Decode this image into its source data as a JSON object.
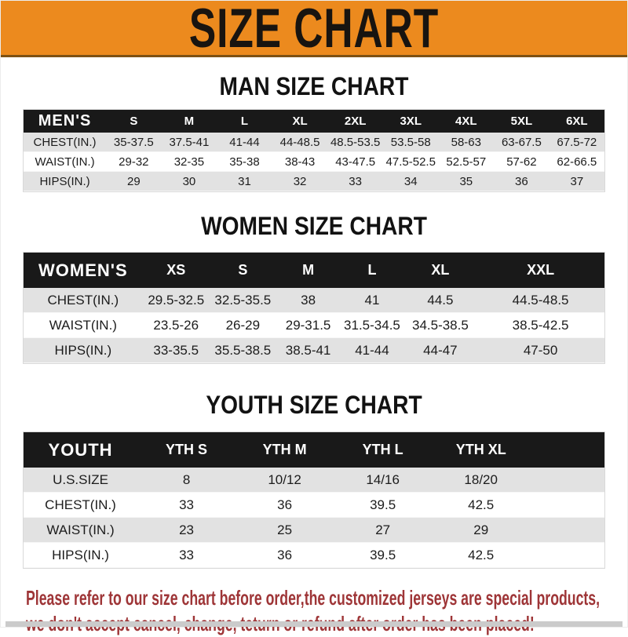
{
  "banner": {
    "title": "SIZE CHART"
  },
  "sections": [
    {
      "title": "MAN SIZE CHART",
      "header_label": "MEN'S",
      "columns": [
        "S",
        "M",
        "L",
        "XL",
        "2XL",
        "3XL",
        "4XL",
        "5XL",
        "6XL"
      ],
      "rows": [
        {
          "label": "CHEST(IN.)",
          "values": [
            "35-37.5",
            "37.5-41",
            "41-44",
            "44-48.5",
            "48.5-53.5",
            "53.5-58",
            "58-63",
            "63-67.5",
            "67.5-72"
          ]
        },
        {
          "label": "WAIST(IN.)",
          "values": [
            "29-32",
            "32-35",
            "35-38",
            "38-43",
            "43-47.5",
            "47.5-52.5",
            "52.5-57",
            "57-62",
            "62-66.5"
          ]
        },
        {
          "label": "HIPS(IN.)",
          "values": [
            "29",
            "30",
            "31",
            "32",
            "33",
            "34",
            "35",
            "36",
            "37"
          ]
        }
      ]
    },
    {
      "title": "WOMEN SIZE CHART",
      "header_label": "WOMEN'S",
      "columns": [
        "XS",
        "S",
        "M",
        "L",
        "XL",
        "XXL"
      ],
      "rows": [
        {
          "label": "CHEST(IN.)",
          "values": [
            "29.5-32.5",
            "32.5-35.5",
            "38",
            "41",
            "44.5",
            "44.5-48.5"
          ]
        },
        {
          "label": "WAIST(IN.)",
          "values": [
            "23.5-26",
            "26-29",
            "29-31.5",
            "31.5-34.5",
            "34.5-38.5",
            "38.5-42.5"
          ]
        },
        {
          "label": "HIPS(IN.)",
          "values": [
            "33-35.5",
            "35.5-38.5",
            "38.5-41",
            "41-44",
            "44-47",
            "47-50"
          ]
        }
      ]
    },
    {
      "title": "YOUTH SIZE CHART",
      "header_label": "YOUTH",
      "columns": [
        "YTH S",
        "YTH M",
        "YTH L",
        "YTH XL"
      ],
      "rows": [
        {
          "label": "U.S.SIZE",
          "values": [
            "8",
            "10/12",
            "14/16",
            "18/20"
          ]
        },
        {
          "label": "CHEST(IN.)",
          "values": [
            "33",
            "36",
            "39.5",
            "42.5"
          ]
        },
        {
          "label": "WAIST(IN.)",
          "values": [
            "23",
            "25",
            "27",
            "29"
          ]
        },
        {
          "label": "HIPS(IN.)",
          "values": [
            "33",
            "36",
            "39.5",
            "42.5"
          ]
        }
      ]
    }
  ],
  "footer": {
    "line1": "Please refer to our size chart before order,the customized jerseys are special products,",
    "line2": "we don't accept cancel, change, teturn or refund after order has been placed!"
  },
  "colors": {
    "banner_orange": "#ec8a1e",
    "banner_text": "#181410",
    "table_header_black": "#191919",
    "row_gray": "#e2e2e2",
    "row_white": "#ffffff",
    "disclaimer_red": "#9e3537"
  },
  "chart_data": [
    {
      "type": "table",
      "title": "MAN SIZE CHART",
      "columns": [
        "MEN'S",
        "S",
        "M",
        "L",
        "XL",
        "2XL",
        "3XL",
        "4XL",
        "5XL",
        "6XL"
      ],
      "rows": [
        [
          "CHEST(IN.)",
          "35-37.5",
          "37.5-41",
          "41-44",
          "44-48.5",
          "48.5-53.5",
          "53.5-58",
          "58-63",
          "63-67.5",
          "67.5-72"
        ],
        [
          "WAIST(IN.)",
          "29-32",
          "32-35",
          "35-38",
          "38-43",
          "43-47.5",
          "47.5-52.5",
          "52.5-57",
          "57-62",
          "62-66.5"
        ],
        [
          "HIPS(IN.)",
          "29",
          "30",
          "31",
          "32",
          "33",
          "34",
          "35",
          "36",
          "37"
        ]
      ]
    },
    {
      "type": "table",
      "title": "WOMEN SIZE CHART",
      "columns": [
        "WOMEN'S",
        "XS",
        "S",
        "M",
        "L",
        "XL",
        "XXL"
      ],
      "rows": [
        [
          "CHEST(IN.)",
          "29.5-32.5",
          "32.5-35.5",
          "38",
          "41",
          "44.5",
          "44.5-48.5"
        ],
        [
          "WAIST(IN.)",
          "23.5-26",
          "26-29",
          "29-31.5",
          "31.5-34.5",
          "34.5-38.5",
          "38.5-42.5"
        ],
        [
          "HIPS(IN.)",
          "33-35.5",
          "35.5-38.5",
          "38.5-41",
          "41-44",
          "44-47",
          "47-50"
        ]
      ]
    },
    {
      "type": "table",
      "title": "YOUTH SIZE CHART",
      "columns": [
        "YOUTH",
        "YTH S",
        "YTH M",
        "YTH L",
        "YTH XL"
      ],
      "rows": [
        [
          "U.S.SIZE",
          "8",
          "10/12",
          "14/16",
          "18/20"
        ],
        [
          "CHEST(IN.)",
          "33",
          "36",
          "39.5",
          "42.5"
        ],
        [
          "WAIST(IN.)",
          "23",
          "25",
          "27",
          "29"
        ],
        [
          "HIPS(IN.)",
          "33",
          "36",
          "39.5",
          "42.5"
        ]
      ]
    }
  ]
}
